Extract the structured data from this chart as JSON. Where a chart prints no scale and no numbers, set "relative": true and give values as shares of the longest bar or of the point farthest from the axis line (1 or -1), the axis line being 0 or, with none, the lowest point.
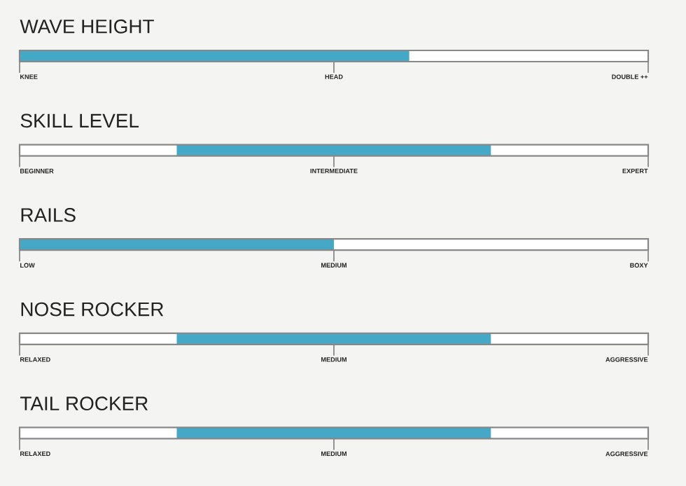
{
  "chart_data": [
    {
      "type": "bar",
      "orientation": "horizontal",
      "relative": true,
      "stacked": true,
      "title": "WAVE HEIGHT",
      "categories": [
        null
      ],
      "series": [
        {
          "color": "#44a8c6",
          "values": [
            0.62
          ]
        },
        {
          "color": "#ffffff",
          "values": [
            0.38
          ]
        }
      ],
      "annotations": [
        "KNEE",
        "HEAD",
        "DOUBLE ++"
      ]
    },
    {
      "type": "bar",
      "orientation": "horizontal",
      "relative": true,
      "stacked": true,
      "title": "SKILL LEVEL",
      "categories": [
        null
      ],
      "series": [
        {
          "color": "#ffffff",
          "values": [
            0.25
          ]
        },
        {
          "color": "#44a8c6",
          "values": [
            0.5
          ]
        },
        {
          "color": "#ffffff",
          "values": [
            0.25
          ]
        }
      ],
      "annotations": [
        "BEGINNER",
        "INTERMEDIATE",
        "EXPERT"
      ]
    },
    {
      "type": "bar",
      "orientation": "horizontal",
      "relative": true,
      "stacked": true,
      "title": "RAILS",
      "categories": [
        null
      ],
      "series": [
        {
          "color": "#44a8c6",
          "values": [
            0.5
          ]
        },
        {
          "color": "#ffffff",
          "values": [
            0.5
          ]
        }
      ],
      "annotations": [
        "LOW",
        "MEDIUM",
        "BOXY"
      ]
    },
    {
      "type": "bar",
      "orientation": "horizontal",
      "relative": true,
      "stacked": true,
      "title": "NOSE ROCKER",
      "categories": [
        null
      ],
      "series": [
        {
          "color": "#ffffff",
          "values": [
            0.25
          ]
        },
        {
          "color": "#44a8c6",
          "values": [
            0.5
          ]
        },
        {
          "color": "#ffffff",
          "values": [
            0.25
          ]
        }
      ],
      "annotations": [
        "RELAXED",
        "MEDIUM",
        "AGGRESSIVE"
      ]
    },
    {
      "type": "bar",
      "orientation": "horizontal",
      "relative": true,
      "stacked": true,
      "title": "TAIL ROCKER",
      "categories": [
        null
      ],
      "series": [
        {
          "color": "#ffffff",
          "values": [
            0.25
          ]
        },
        {
          "color": "#44a8c6",
          "values": [
            0.5
          ]
        },
        {
          "color": "#ffffff",
          "values": [
            0.25
          ]
        }
      ],
      "annotations": [
        "RELAXED",
        "MEDIUM",
        "AGGRESSIVE"
      ]
    }
  ]
}
